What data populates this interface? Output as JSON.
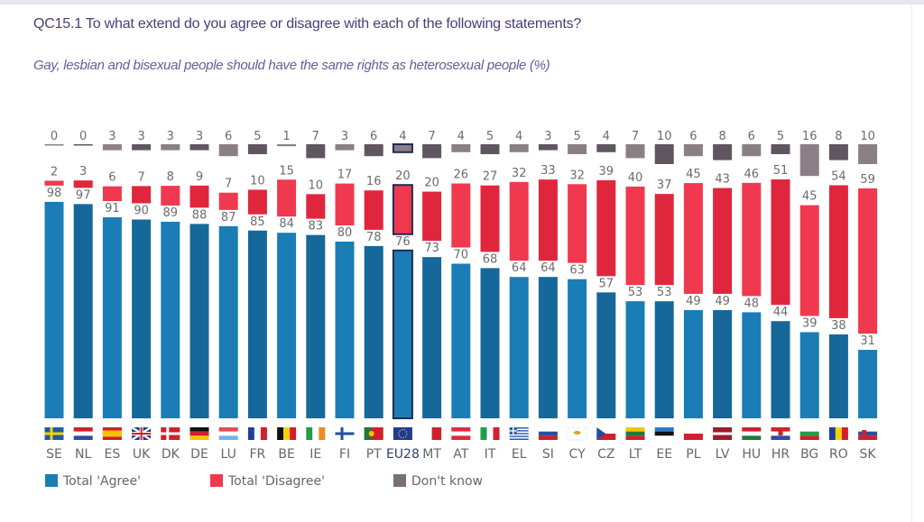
{
  "header": {
    "title": "QC15.1 To what extend do you agree or disagree with each of the following statements?",
    "subtitle": "Gay, lesbian and bisexual people should have the same rights as heterosexual people (%)"
  },
  "chart_data": {
    "type": "bar",
    "subtype": "grouped-floating-columns",
    "title": "QC15.1 To what extend do you agree or disagree with each of the following statements?",
    "subtitle": "Gay, lesbian and bisexual people should have the same rights as heterosexual people (%)",
    "xlabel": "",
    "ylabel": "%",
    "ylim": [
      0,
      100
    ],
    "grid": false,
    "legend_position": "bottom-left",
    "highlight_category": "EU28",
    "categories": [
      "SE",
      "NL",
      "ES",
      "UK",
      "DK",
      "DE",
      "LU",
      "FR",
      "BE",
      "IE",
      "FI",
      "PT",
      "EU28",
      "MT",
      "AT",
      "IT",
      "EL",
      "SI",
      "CY",
      "CZ",
      "LT",
      "EE",
      "PL",
      "LV",
      "HU",
      "HR",
      "BG",
      "RO",
      "SK"
    ],
    "series": [
      {
        "name": "Total 'Agree'",
        "color": "#1a7db6",
        "values": [
          98,
          97,
          91,
          90,
          89,
          88,
          87,
          85,
          84,
          83,
          80,
          78,
          76,
          73,
          70,
          68,
          64,
          64,
          63,
          57,
          53,
          53,
          49,
          49,
          48,
          44,
          39,
          38,
          31
        ]
      },
      {
        "name": "Total 'Disagree'",
        "color": "#f0394e",
        "values": [
          2,
          3,
          6,
          7,
          8,
          9,
          7,
          10,
          15,
          10,
          17,
          16,
          20,
          20,
          26,
          27,
          32,
          33,
          32,
          39,
          40,
          37,
          45,
          43,
          46,
          51,
          45,
          54,
          59
        ]
      },
      {
        "name": "Don't know",
        "color": "#8a7f84",
        "values": [
          0,
          0,
          3,
          3,
          3,
          3,
          6,
          5,
          1,
          7,
          3,
          6,
          4,
          7,
          4,
          5,
          4,
          3,
          5,
          4,
          7,
          10,
          6,
          8,
          6,
          5,
          16,
          8,
          10
        ]
      }
    ]
  },
  "legend": {
    "items": [
      {
        "label": "Total 'Agree'"
      },
      {
        "label": "Total 'Disagree'"
      },
      {
        "label": "Don't know"
      }
    ]
  }
}
